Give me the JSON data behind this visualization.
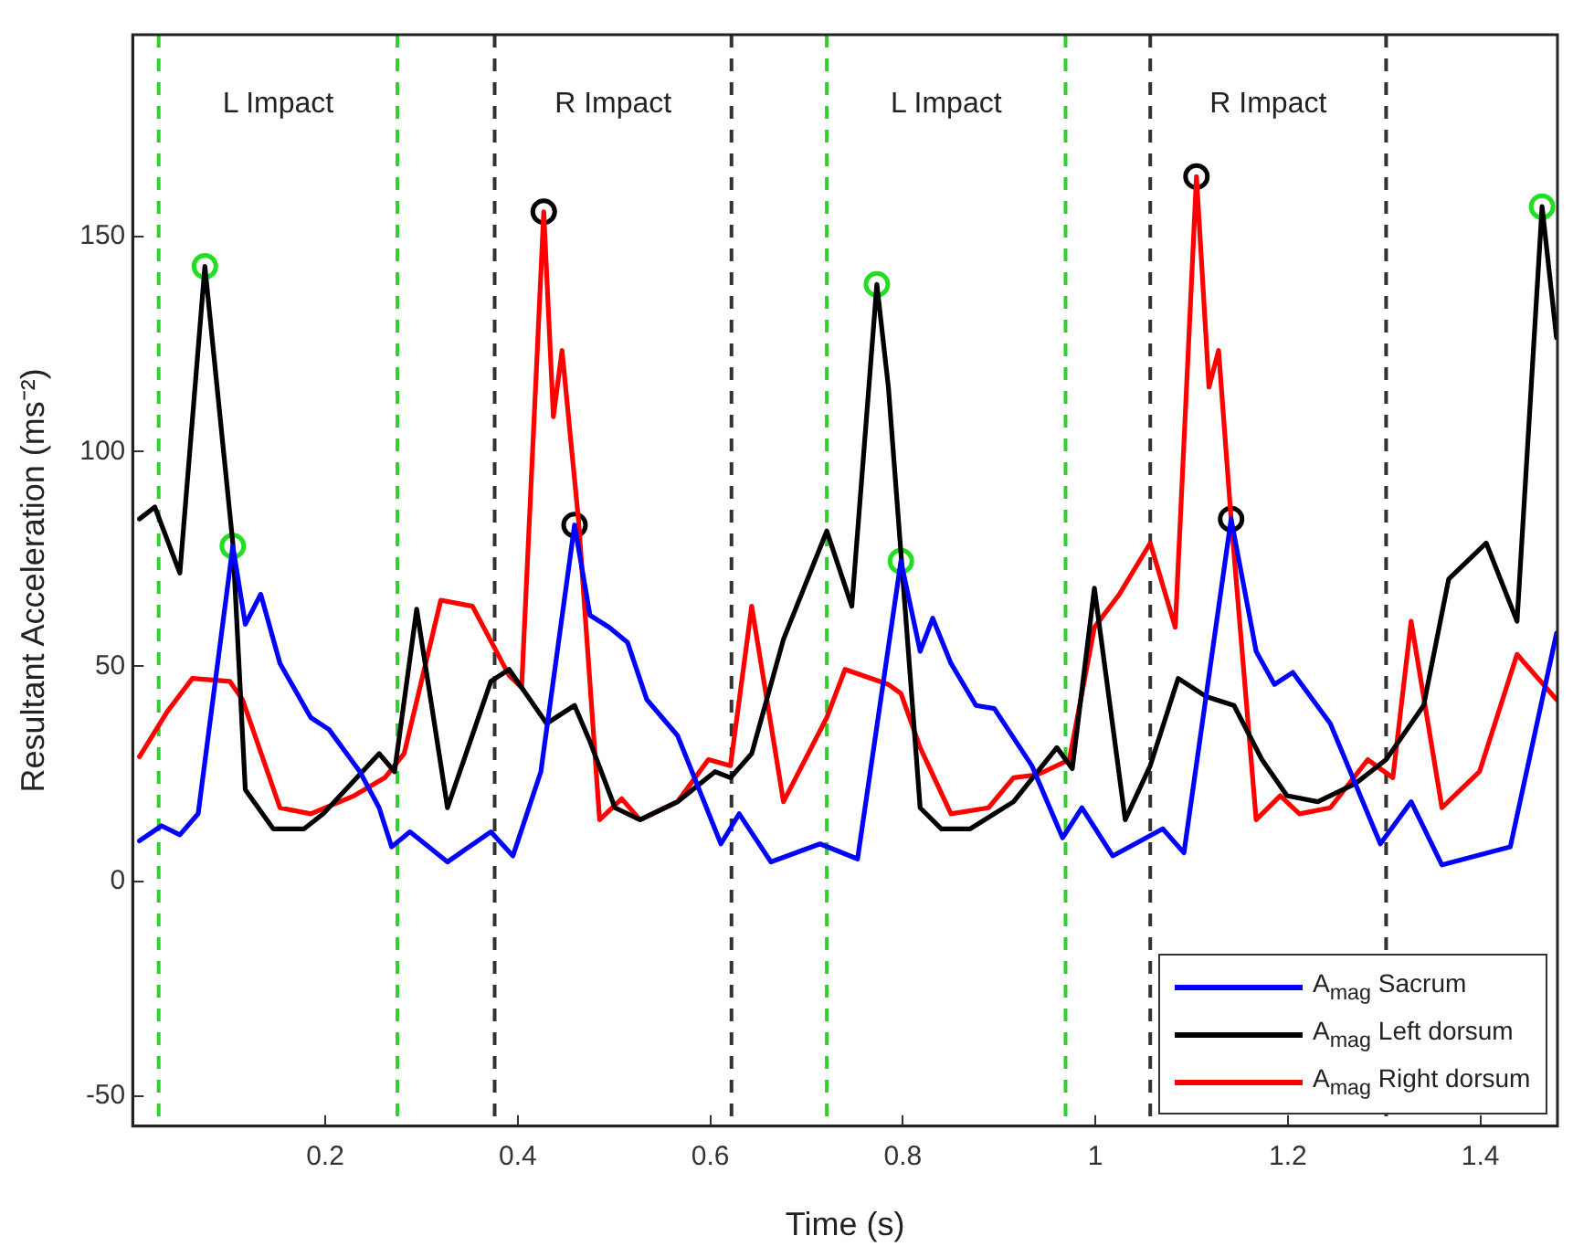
{
  "chart_data": {
    "type": "line",
    "xlabel": "Time (s)",
    "ylabel": "Resultant Acceleration (ms⁻²)",
    "xlim": [
      0,
      1.48
    ],
    "ylim": [
      -57,
      197
    ],
    "xticks": [
      0.2,
      0.4,
      0.6,
      0.8,
      1,
      1.2,
      1.4
    ],
    "yticks": [
      -50,
      0,
      50,
      100,
      150
    ],
    "grid": false,
    "legend": "bottom right",
    "marker": "none",
    "line_style": "solid",
    "ref_lines": [
      {
        "axis": "x",
        "value": 0.027,
        "color": "#33cc33",
        "line_style": "dashed"
      },
      {
        "axis": "x",
        "value": 0.275,
        "color": "#33cc33",
        "line_style": "dashed"
      },
      {
        "axis": "x",
        "value": 0.376,
        "color": "#333333",
        "line_style": "dashed"
      },
      {
        "axis": "x",
        "value": 0.622,
        "color": "#333333",
        "line_style": "dashed"
      },
      {
        "axis": "x",
        "value": 0.721,
        "color": "#33cc33",
        "line_style": "dashed"
      },
      {
        "axis": "x",
        "value": 0.969,
        "color": "#33cc33",
        "line_style": "dashed"
      },
      {
        "axis": "x",
        "value": 1.057,
        "color": "#333333",
        "line_style": "dashed"
      },
      {
        "axis": "x",
        "value": 1.302,
        "color": "#333333",
        "line_style": "dashed"
      }
    ],
    "annotations": [
      "L Impact",
      "R Impact",
      "L Impact",
      "R Impact"
    ],
    "series": [
      {
        "name": "A$_{mag}$ Sacrum",
        "color": "#0000ff",
        "x": [
          0.007,
          0.03,
          0.049,
          0.068,
          0.104,
          0.117,
          0.133,
          0.153,
          0.185,
          0.204,
          0.236,
          0.256,
          0.269,
          0.288,
          0.327,
          0.372,
          0.395,
          0.424,
          0.459,
          0.475,
          0.495,
          0.514,
          0.534,
          0.566,
          0.611,
          0.63,
          0.663,
          0.714,
          0.753,
          0.798,
          0.818,
          0.831,
          0.85,
          0.876,
          0.895,
          0.934,
          0.966,
          0.986,
          1.018,
          1.07,
          1.092,
          1.141,
          1.167,
          1.186,
          1.205,
          1.244,
          1.296,
          1.328,
          1.36,
          1.431,
          1.479
        ],
        "values": [
          9.4,
          12.9,
          10.8,
          15.7,
          78,
          59.8,
          66.8,
          50.7,
          38.1,
          35.3,
          25.5,
          17.1,
          8,
          11.5,
          4.5,
          11.5,
          5.9,
          25.5,
          82.9,
          61.9,
          59.1,
          55.6,
          42.3,
          33.9,
          8.7,
          15.7,
          4.5,
          8.7,
          5.2,
          74.5,
          53.5,
          61.2,
          50.7,
          40.9,
          40.2,
          26.9,
          10.1,
          17.1,
          5.9,
          12.2,
          6.6,
          84.3,
          53.5,
          45.8,
          48.6,
          36.7,
          8.7,
          18.5,
          3.8,
          8,
          57.7
        ]
      },
      {
        "name": "A$_{mag}$ Left dorsum",
        "color": "#000000",
        "x": [
          0.007,
          0.023,
          0.049,
          0.075,
          0.104,
          0.117,
          0.146,
          0.178,
          0.198,
          0.256,
          0.272,
          0.295,
          0.327,
          0.372,
          0.391,
          0.43,
          0.459,
          0.475,
          0.501,
          0.527,
          0.566,
          0.605,
          0.621,
          0.643,
          0.676,
          0.721,
          0.747,
          0.773,
          0.785,
          0.818,
          0.84,
          0.87,
          0.915,
          0.96,
          0.976,
          0.999,
          1.031,
          1.057,
          1.086,
          1.115,
          1.144,
          1.173,
          1.199,
          1.231,
          1.27,
          1.302,
          1.341,
          1.367,
          1.406,
          1.438,
          1.464,
          1.479
        ],
        "values": [
          84.3,
          87.1,
          71.7,
          143.1,
          78.7,
          21.3,
          12.2,
          12.2,
          15.7,
          29.7,
          25.5,
          63.3,
          17.1,
          46.5,
          49.3,
          36.7,
          40.9,
          32.5,
          17.1,
          14.3,
          18.5,
          25.5,
          24.1,
          29.7,
          56.3,
          81.5,
          64,
          138.9,
          115,
          17.1,
          12.2,
          12.2,
          18.5,
          31.1,
          26.2,
          68.2,
          14.3,
          26.9,
          47.2,
          43,
          40.9,
          28.3,
          19.9,
          18.5,
          22.7,
          28.3,
          40.9,
          70.3,
          78.7,
          60.5,
          157,
          126.5
        ]
      },
      {
        "name": "A$_{mag}$ Right dorsum",
        "color": "#ff0000",
        "x": [
          0.007,
          0.036,
          0.062,
          0.101,
          0.114,
          0.153,
          0.185,
          0.23,
          0.262,
          0.282,
          0.32,
          0.353,
          0.391,
          0.404,
          0.427,
          0.437,
          0.446,
          0.463,
          0.485,
          0.508,
          0.527,
          0.566,
          0.598,
          0.621,
          0.643,
          0.676,
          0.721,
          0.74,
          0.785,
          0.798,
          0.818,
          0.85,
          0.889,
          0.915,
          0.94,
          0.973,
          0.999,
          1.025,
          1.057,
          1.083,
          1.105,
          1.118,
          1.128,
          1.141,
          1.167,
          1.192,
          1.212,
          1.244,
          1.283,
          1.309,
          1.328,
          1.36,
          1.399,
          1.438,
          1.479
        ],
        "values": [
          29,
          39.5,
          47.2,
          46.5,
          42.3,
          17.1,
          15.7,
          19.9,
          24.1,
          29.7,
          65.4,
          64,
          47.9,
          45.1,
          155.8,
          108.1,
          123.5,
          84.3,
          14.3,
          19.2,
          14.3,
          18.5,
          28.3,
          26.9,
          64,
          18.5,
          38.1,
          49.3,
          45.8,
          43.7,
          31.1,
          15.7,
          17.1,
          24.1,
          24.8,
          28.3,
          59.1,
          66.8,
          78.7,
          59.1,
          164,
          115,
          123.5,
          84.3,
          14.3,
          19.9,
          15.7,
          17.1,
          28.3,
          24.1,
          60.5,
          17.1,
          25.5,
          52.8,
          42.3
        ]
      },
      {
        "type": "scatter",
        "marker": "circle",
        "color": "#22dd22",
        "x": [
          0.075,
          0.104,
          0.773,
          0.798,
          1.464
        ],
        "values": [
          143.1,
          78,
          138.9,
          74.5,
          157
        ]
      },
      {
        "type": "scatter",
        "marker": "circle",
        "color": "#000000",
        "x": [
          0.427,
          0.459,
          1.105,
          1.141
        ],
        "values": [
          155.8,
          82.9,
          164,
          84.3
        ]
      }
    ]
  }
}
